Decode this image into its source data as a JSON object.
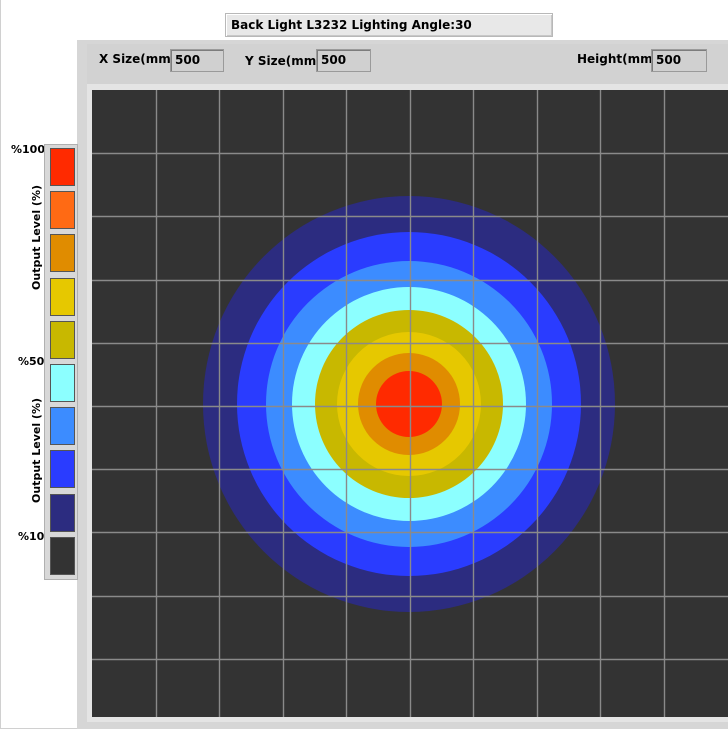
{
  "window": {
    "title": "Back Light L3232 Lighting Angle:30"
  },
  "parameters": {
    "x_size_label": "X Size(mm)",
    "x_size_value": "500",
    "y_size_label": "Y Size(mm)",
    "y_size_value": "500",
    "height_label": "Height(mm)",
    "height_value": "500"
  },
  "legend": {
    "label_top": "%100",
    "label_mid": "%50",
    "label_low": "%10",
    "axis_title_upper": "Output Level (%)",
    "axis_title_lower": "Output Level (%)",
    "colors": [
      "#ff2a00",
      "#ff6a14",
      "#e08c00",
      "#e6c800",
      "#c8b800",
      "#8cffff",
      "#3c8cff",
      "#2a3cff",
      "#2c2c80",
      "#333333"
    ]
  },
  "heatmap": {
    "background": "#333333",
    "grid_color": "#8a8a8a",
    "grid_columns": 10,
    "grid_rows": 10,
    "contour_levels": [
      {
        "level": 10,
        "color": "#2c2c80"
      },
      {
        "level": 20,
        "color": "#2a3cff"
      },
      {
        "level": 30,
        "color": "#3c8cff"
      },
      {
        "level": 40,
        "color": "#8cffff"
      },
      {
        "level": 50,
        "color": "#c8b800"
      },
      {
        "level": 60,
        "color": "#e6c800"
      },
      {
        "level": 70,
        "color": "#e08c00"
      },
      {
        "level": 80,
        "color": "#ff6a14"
      },
      {
        "level": 90,
        "color": "#ff2a00"
      }
    ]
  }
}
